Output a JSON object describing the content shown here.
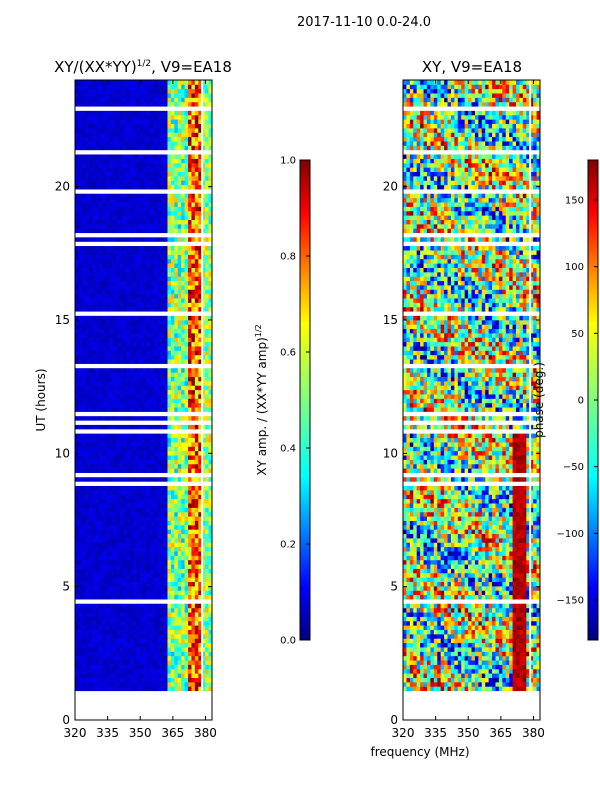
{
  "figure": {
    "suptitle": "2017-11-10 0.0-24.0",
    "xlabel": "frequency (MHz)"
  },
  "chart_data": [
    {
      "type": "heatmap",
      "title_main": "XY/(XX*YY)",
      "title_exp": "1/2",
      "title_tail": ", V9=EA18",
      "ylabel": "UT (hours)",
      "xlim": [
        320,
        383
      ],
      "ylim": [
        0,
        24
      ],
      "xticks": [
        "320",
        "335",
        "350",
        "365",
        "380"
      ],
      "xtick_values": [
        320,
        335,
        350,
        365,
        380
      ],
      "yticks": [
        "0",
        "5",
        "10",
        "15",
        "20"
      ],
      "ytick_values": [
        0,
        5,
        10,
        15,
        20
      ],
      "data_start_hour": 1.1,
      "colormap": "jet",
      "colorbar": {
        "label_main": "XY amp. / (XX*YY amp)",
        "label_exp": "1/2",
        "range": [
          0.0,
          1.0
        ],
        "ticks": [
          "0.0",
          "0.2",
          "0.4",
          "0.6",
          "0.8",
          "1.0"
        ],
        "tick_values": [
          0.0,
          0.2,
          0.4,
          0.6,
          0.8,
          1.0
        ]
      }
    },
    {
      "type": "heatmap",
      "title": "XY, V9=EA18",
      "ylabel": "phase (deg.)",
      "xlim": [
        320,
        383
      ],
      "ylim": [
        0,
        24
      ],
      "xticks": [
        "320",
        "335",
        "350",
        "365",
        "380"
      ],
      "xtick_values": [
        320,
        335,
        350,
        365,
        380
      ],
      "yticks": [
        "0",
        "5",
        "10",
        "15",
        "20"
      ],
      "ytick_values": [
        0,
        5,
        10,
        15,
        20
      ],
      "data_start_hour": 1.1,
      "colormap": "jet",
      "colorbar": {
        "range": [
          -180,
          180
        ],
        "ticks": [
          "−150",
          "−100",
          "−50",
          "0",
          "50",
          "100",
          "150"
        ],
        "tick_values": [
          -150,
          -100,
          -50,
          0,
          50,
          100,
          150
        ]
      }
    }
  ],
  "colors": {
    "jet": [
      "#00007f",
      "#0000ff",
      "#007fff",
      "#00ffff",
      "#7fff7f",
      "#ffff00",
      "#ff7f00",
      "#ff0000",
      "#7f0000"
    ],
    "gap": "#ffffff",
    "frame": "#000000"
  }
}
